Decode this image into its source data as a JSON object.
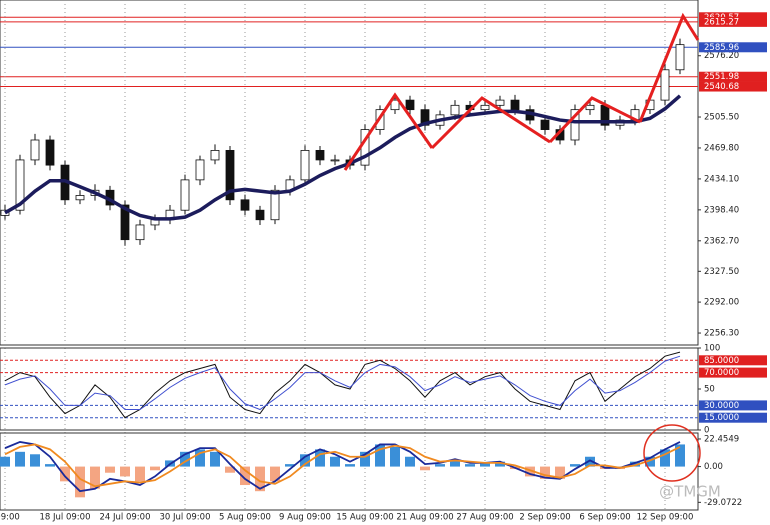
{
  "chart_data": [
    {
      "type": "candlestick",
      "categories": [
        "l 09:00",
        null,
        null,
        null,
        "18 Jul 09:00",
        null,
        null,
        null,
        "24 Jul 09:00",
        null,
        null,
        null,
        "30 Jul 09:00",
        null,
        null,
        null,
        "5 Aug 09:00",
        null,
        null,
        null,
        "9 Aug 09:00",
        null,
        null,
        null,
        "15 Aug 09:00",
        null,
        null,
        null,
        "21 Aug 09:00",
        null,
        null,
        null,
        "27 Aug 09:00",
        null,
        null,
        null,
        "2 Sep 09:00",
        null,
        null,
        null,
        "6 Sep 09:00",
        null,
        null,
        null,
        "12 Sep 09:00",
        null
      ],
      "open": [
        2392,
        2398,
        2456,
        2479,
        2450,
        2410,
        2415,
        2421,
        2404,
        2364,
        2381,
        2387,
        2398,
        2433,
        2456,
        2467,
        2410,
        2398,
        2387,
        2421,
        2433,
        2467,
        2456,
        2456,
        2450,
        2491,
        2514,
        2525,
        2514,
        2496,
        2508,
        2519,
        2514,
        2519,
        2525,
        2514,
        2502,
        2491,
        2479,
        2514,
        2519,
        2496,
        2502,
        2514,
        2525,
        2560
      ],
      "high": [
        2404,
        2462,
        2486,
        2484,
        2455,
        2421,
        2428,
        2426,
        2409,
        2387,
        2393,
        2404,
        2439,
        2461,
        2474,
        2472,
        2416,
        2403,
        2427,
        2438,
        2473,
        2472,
        2462,
        2461,
        2497,
        2519,
        2532,
        2530,
        2520,
        2513,
        2525,
        2524,
        2525,
        2530,
        2531,
        2519,
        2508,
        2496,
        2520,
        2524,
        2525,
        2507,
        2520,
        2531,
        2567,
        2596
      ],
      "low": [
        2387,
        2393,
        2450,
        2444,
        2404,
        2405,
        2409,
        2398,
        2357,
        2358,
        2375,
        2382,
        2393,
        2427,
        2451,
        2404,
        2392,
        2381,
        2382,
        2415,
        2428,
        2450,
        2450,
        2445,
        2444,
        2485,
        2509,
        2508,
        2490,
        2491,
        2502,
        2508,
        2509,
        2513,
        2508,
        2497,
        2485,
        2474,
        2473,
        2508,
        2490,
        2491,
        2496,
        2509,
        2519,
        2555
      ],
      "close": [
        2398,
        2456,
        2479,
        2450,
        2410,
        2415,
        2421,
        2404,
        2364,
        2381,
        2387,
        2398,
        2433,
        2456,
        2467,
        2410,
        2398,
        2387,
        2421,
        2433,
        2467,
        2456,
        2456,
        2450,
        2491,
        2514,
        2525,
        2514,
        2496,
        2508,
        2519,
        2514,
        2519,
        2525,
        2514,
        2502,
        2491,
        2479,
        2514,
        2519,
        2496,
        2502,
        2514,
        2525,
        2560,
        2589
      ],
      "up_color": "#ffffff",
      "down_color": "#111111",
      "ma": {
        "color": "#1c1c5c",
        "values": [
          2395,
          2405,
          2420,
          2432,
          2432,
          2425,
          2418,
          2410,
          2400,
          2392,
          2388,
          2388,
          2390,
          2398,
          2410,
          2420,
          2422,
          2420,
          2418,
          2420,
          2428,
          2438,
          2446,
          2452,
          2460,
          2470,
          2482,
          2492,
          2498,
          2502,
          2505,
          2508,
          2510,
          2512,
          2512,
          2510,
          2506,
          2502,
          2500,
          2500,
          2500,
          2500,
          2500,
          2504,
          2515,
          2530
        ]
      },
      "ylim": [
        2242.5,
        2640.5
      ],
      "yticks": [
        {
          "value": 2576.2,
          "label": "2576.20"
        },
        {
          "value": 2505.5,
          "label": "2505.50"
        },
        {
          "value": 2469.8,
          "label": "2469.80"
        },
        {
          "value": 2434.1,
          "label": "2434.10"
        },
        {
          "value": 2398.4,
          "label": "2398.40"
        },
        {
          "value": 2362.7,
          "label": "2362.70"
        },
        {
          "value": 2327.5,
          "label": "2327.50"
        },
        {
          "value": 2292,
          "label": "2292.00"
        },
        {
          "value": 2256.3,
          "label": "2256.30"
        }
      ],
      "levels": [
        {
          "value": 2620.57,
          "color": "#e02020"
        },
        {
          "value": 2615.27,
          "color": "#e02020"
        },
        {
          "value": 2585.96,
          "color": "#3050c0"
        },
        {
          "value": 2551.98,
          "color": "#e02020"
        },
        {
          "value": 2540.68,
          "color": "#e02020"
        }
      ]
    },
    {
      "type": "line",
      "series": [
        {
          "color": "#111111",
          "values": [
            60,
            70,
            65,
            40,
            20,
            30,
            55,
            40,
            15,
            25,
            45,
            60,
            70,
            75,
            80,
            40,
            25,
            20,
            45,
            60,
            80,
            70,
            55,
            50,
            80,
            85,
            75,
            60,
            40,
            60,
            70,
            55,
            65,
            70,
            50,
            35,
            30,
            25,
            60,
            70,
            35,
            50,
            65,
            75,
            90,
            95
          ]
        },
        {
          "color": "#4050d0",
          "values": [
            55,
            62,
            66,
            50,
            30,
            30,
            45,
            42,
            25,
            25,
            38,
            52,
            63,
            70,
            76,
            50,
            32,
            25,
            38,
            52,
            70,
            70,
            60,
            52,
            70,
            80,
            77,
            65,
            48,
            55,
            65,
            58,
            62,
            66,
            55,
            42,
            35,
            30,
            48,
            62,
            45,
            48,
            58,
            70,
            84,
            90
          ]
        }
      ],
      "ylim": [
        0,
        100
      ],
      "yticks": [
        100,
        50,
        0
      ],
      "levels": [
        {
          "value": 85,
          "label": "85.0000",
          "color": "#e02020"
        },
        {
          "value": 70,
          "label": "70.0000",
          "color": "#e02020"
        },
        {
          "value": 30,
          "label": "30.0000",
          "color": "#3050c0"
        },
        {
          "value": 15,
          "label": "15.0000",
          "color": "#3050c0"
        }
      ]
    },
    {
      "type": "macd",
      "histogram": {
        "pos_color": "#3a8fd8",
        "neg_color": "#f4a582",
        "values": [
          8,
          12,
          10,
          2,
          -12,
          -25,
          -18,
          -5,
          -8,
          -12,
          -3,
          5,
          12,
          14,
          12,
          -5,
          -15,
          -20,
          -12,
          2,
          10,
          14,
          8,
          2,
          12,
          18,
          16,
          8,
          -3,
          2,
          5,
          2,
          3,
          4,
          -2,
          -8,
          -10,
          -10,
          2,
          8,
          -2,
          -2,
          4,
          8,
          14,
          18
        ]
      },
      "series": [
        {
          "color": "#1a2a9a",
          "values": [
            15,
            20,
            18,
            8,
            -8,
            -20,
            -18,
            -10,
            -12,
            -15,
            -8,
            2,
            10,
            15,
            15,
            2,
            -10,
            -18,
            -12,
            -2,
            8,
            14,
            10,
            4,
            10,
            18,
            18,
            12,
            2,
            3,
            6,
            3,
            3,
            4,
            -1,
            -6,
            -9,
            -10,
            -2,
            5,
            -1,
            -1,
            3,
            7,
            14,
            20
          ]
        },
        {
          "color": "#f08a20",
          "values": [
            10,
            16,
            18,
            14,
            4,
            -10,
            -16,
            -14,
            -12,
            -13,
            -11,
            -4,
            4,
            11,
            14,
            8,
            -3,
            -12,
            -14,
            -8,
            2,
            10,
            12,
            8,
            8,
            14,
            17,
            15,
            8,
            4,
            5,
            4,
            3,
            3,
            1,
            -3,
            -7,
            -9,
            -6,
            1,
            1,
            -1,
            1,
            5,
            10,
            16
          ]
        }
      ],
      "ylim": [
        -35.3,
        27.3
      ],
      "yticks": [
        22.4549,
        {
          "value": 0,
          "label": "0.00"
        },
        -29.0722
      ]
    }
  ],
  "watermark": "@TMGM"
}
